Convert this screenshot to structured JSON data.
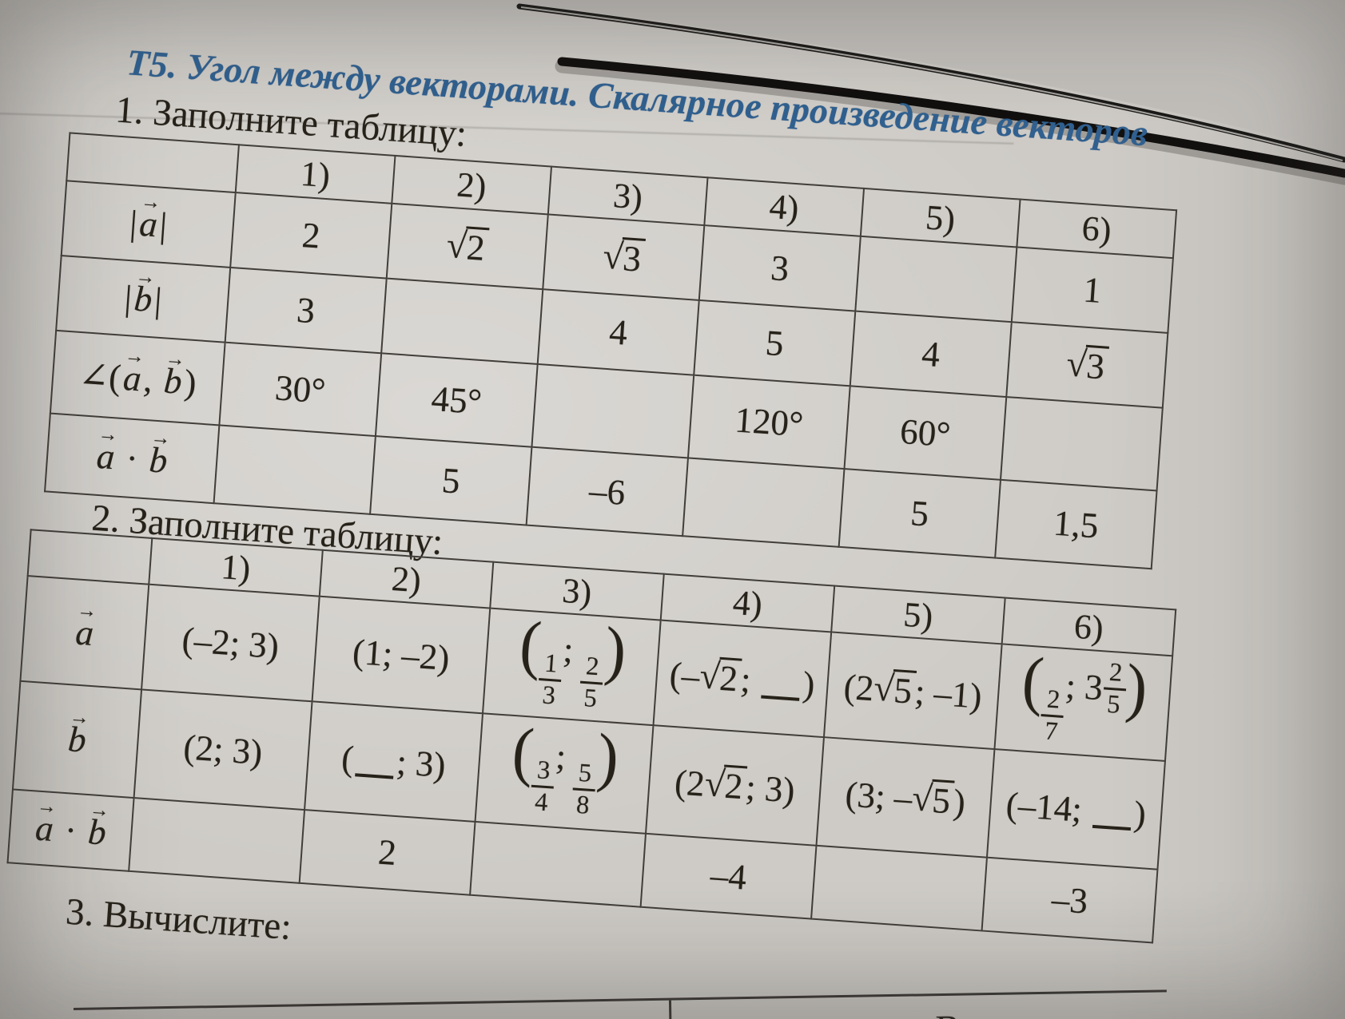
{
  "page": {
    "title": "Т5. Угол между векторами. Скалярное произведение векторов",
    "task1_label": "1. Заполните таблицу:",
    "task2_label": "2. Заполните таблицу:",
    "task3_label": "3. Вычислите:",
    "partial_letter": "В"
  },
  "symbols": {
    "sqrt": "√",
    "arrow": "→"
  },
  "colors": {
    "title_blue": "#30608f",
    "ink": "#262219",
    "paper": "#cecbc6",
    "table_line": "#413e3a"
  },
  "table1": {
    "headers": [
      "",
      "1)",
      "2)",
      "3)",
      "4)",
      "5)",
      "6)"
    ],
    "rows": [
      {
        "label": [
          {
            "k": "t",
            "v": "|"
          },
          {
            "k": "v",
            "v": "a"
          },
          {
            "k": "t",
            "v": "|"
          }
        ],
        "cells": [
          [
            {
              "k": "t",
              "v": "2"
            }
          ],
          [
            {
              "k": "s",
              "v": "2"
            }
          ],
          [
            {
              "k": "s",
              "v": "3"
            }
          ],
          [
            {
              "k": "t",
              "v": "3"
            }
          ],
          [],
          [
            {
              "k": "t",
              "v": "1"
            }
          ]
        ]
      },
      {
        "label": [
          {
            "k": "t",
            "v": "|"
          },
          {
            "k": "v",
            "v": "b"
          },
          {
            "k": "t",
            "v": "|"
          }
        ],
        "cells": [
          [
            {
              "k": "t",
              "v": "3"
            }
          ],
          [],
          [
            {
              "k": "t",
              "v": "4"
            }
          ],
          [
            {
              "k": "t",
              "v": "5"
            }
          ],
          [
            {
              "k": "t",
              "v": "4"
            }
          ],
          [
            {
              "k": "s",
              "v": "3"
            }
          ]
        ]
      },
      {
        "label": [
          {
            "k": "t",
            "v": "∠("
          },
          {
            "k": "v",
            "v": "a"
          },
          {
            "k": "t",
            "v": ", "
          },
          {
            "k": "v",
            "v": "b"
          },
          {
            "k": "t",
            "v": ")"
          }
        ],
        "cells": [
          [
            {
              "k": "t",
              "v": "30°"
            }
          ],
          [
            {
              "k": "t",
              "v": "45°"
            }
          ],
          [],
          [
            {
              "k": "t",
              "v": "120°"
            }
          ],
          [
            {
              "k": "t",
              "v": "60°"
            }
          ],
          []
        ]
      },
      {
        "label": [
          {
            "k": "v",
            "v": "a"
          },
          {
            "k": "t",
            "v": " · "
          },
          {
            "k": "v",
            "v": "b"
          }
        ],
        "cells": [
          [],
          [
            {
              "k": "t",
              "v": "5"
            }
          ],
          [
            {
              "k": "t",
              "v": "–6"
            }
          ],
          [],
          [
            {
              "k": "t",
              "v": "5"
            }
          ],
          [
            {
              "k": "t",
              "v": "1,5"
            }
          ]
        ]
      }
    ]
  },
  "table2": {
    "headers": [
      "",
      "1)",
      "2)",
      "3)",
      "4)",
      "5)",
      "6)"
    ],
    "rows": [
      {
        "label": [
          {
            "k": "v",
            "v": "a"
          }
        ],
        "cells": [
          [
            {
              "k": "t",
              "v": "(–2; 3)"
            }
          ],
          [
            {
              "k": "t",
              "v": "(1; –2)"
            }
          ],
          [
            {
              "k": "p",
              "v": "("
            },
            {
              "k": "f",
              "n": "1",
              "d": "3"
            },
            {
              "k": "t",
              "v": "; "
            },
            {
              "k": "f",
              "n": "2",
              "d": "5"
            },
            {
              "k": "p",
              "v": ")"
            }
          ],
          [
            {
              "k": "t",
              "v": "(–"
            },
            {
              "k": "s",
              "v": "2"
            },
            {
              "k": "t",
              "v": "; "
            },
            {
              "k": "b"
            },
            {
              "k": "t",
              "v": ")"
            }
          ],
          [
            {
              "k": "t",
              "v": "(2"
            },
            {
              "k": "s",
              "v": "5"
            },
            {
              "k": "t",
              "v": "; –1)"
            }
          ],
          [
            {
              "k": "p",
              "v": "("
            },
            {
              "k": "f",
              "n": "2",
              "d": "7"
            },
            {
              "k": "t",
              "v": "; "
            },
            {
              "k": "m",
              "w": "3",
              "n": "2",
              "d": "5"
            },
            {
              "k": "p",
              "v": ")"
            }
          ]
        ]
      },
      {
        "label": [
          {
            "k": "v",
            "v": "b"
          }
        ],
        "cells": [
          [
            {
              "k": "t",
              "v": "(2; 3)"
            }
          ],
          [
            {
              "k": "t",
              "v": "("
            },
            {
              "k": "b"
            },
            {
              "k": "t",
              "v": "; 3)"
            }
          ],
          [
            {
              "k": "p",
              "v": "("
            },
            {
              "k": "f",
              "n": "3",
              "d": "4"
            },
            {
              "k": "t",
              "v": "; "
            },
            {
              "k": "f",
              "n": "5",
              "d": "8"
            },
            {
              "k": "p",
              "v": ")"
            }
          ],
          [
            {
              "k": "t",
              "v": "(2"
            },
            {
              "k": "s",
              "v": "2"
            },
            {
              "k": "t",
              "v": "; 3)"
            }
          ],
          [
            {
              "k": "t",
              "v": "(3; –"
            },
            {
              "k": "s",
              "v": "5"
            },
            {
              "k": "t",
              "v": ")"
            }
          ],
          [
            {
              "k": "t",
              "v": "(–14; "
            },
            {
              "k": "b"
            },
            {
              "k": "t",
              "v": ")"
            }
          ]
        ]
      },
      {
        "label": [
          {
            "k": "v",
            "v": "a"
          },
          {
            "k": "t",
            "v": " · "
          },
          {
            "k": "v",
            "v": "b"
          }
        ],
        "cells": [
          [],
          [
            {
              "k": "t",
              "v": "2"
            }
          ],
          [],
          [
            {
              "k": "t",
              "v": "–4"
            }
          ],
          [],
          [
            {
              "k": "t",
              "v": "–3"
            }
          ]
        ]
      }
    ]
  }
}
